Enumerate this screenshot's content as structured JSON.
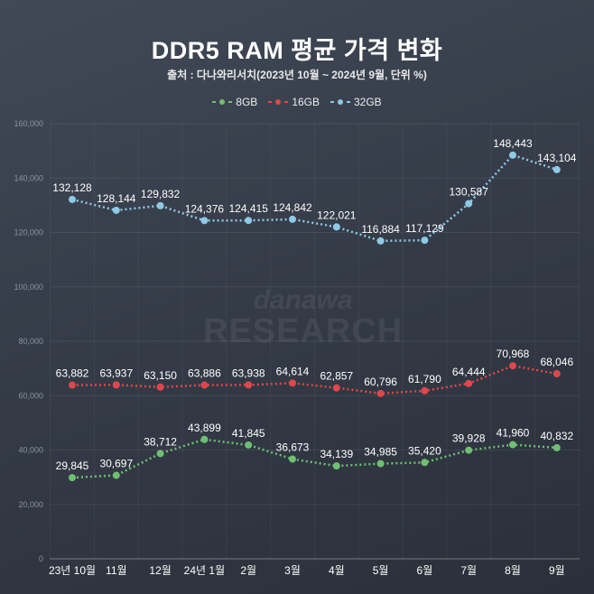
{
  "chart_data": {
    "type": "line",
    "title": "DDR5 RAM 평균 가격 변화",
    "subtitle": "출처 : 다나와리서치(2023년 10월 ~ 2024년 9월, 단위 %)",
    "categories": [
      "23년 10월",
      "11월",
      "12월",
      "24년 1월",
      "2월",
      "3월",
      "4월",
      "5월",
      "6월",
      "7월",
      "8월",
      "9월"
    ],
    "y_ticks": [
      "0",
      "20,000",
      "40,000",
      "60,000",
      "80,000",
      "100,000",
      "120,000",
      "140,000",
      "160,000"
    ],
    "ylim": [
      0,
      160000
    ],
    "grid": true,
    "legend_position": "top-center",
    "series": [
      {
        "name": "8GB",
        "color": "#6fbf73",
        "values": [
          29845,
          30697,
          38712,
          43899,
          41845,
          36673,
          34139,
          34985,
          35420,
          39928,
          41960,
          40832
        ],
        "labels": [
          "29,845",
          "30,697",
          "38,712",
          "43,899",
          "41,845",
          "36,673",
          "34,139",
          "34,985",
          "35,420",
          "39,928",
          "41,960",
          "40,832"
        ]
      },
      {
        "name": "16GB",
        "color": "#e0474c",
        "values": [
          63882,
          63937,
          63150,
          63886,
          63938,
          64614,
          62857,
          60796,
          61790,
          64444,
          70968,
          68046
        ],
        "labels": [
          "63,882",
          "63,937",
          "63,150",
          "63,886",
          "63,938",
          "64,614",
          "62,857",
          "60,796",
          "61,790",
          "64,444",
          "70,968",
          "68,046"
        ]
      },
      {
        "name": "32GB",
        "color": "#8ec9e6",
        "values": [
          132128,
          128144,
          129832,
          124376,
          124415,
          124842,
          122021,
          116884,
          117129,
          130587,
          148443,
          143104
        ],
        "labels": [
          "132,128",
          "128,144",
          "129,832",
          "124,376",
          "124,415",
          "124,842",
          "122,021",
          "116,884",
          "117,129",
          "130,587",
          "148,443",
          "143,104"
        ]
      }
    ],
    "watermark": [
      "danawa",
      "RESEARCH"
    ]
  }
}
